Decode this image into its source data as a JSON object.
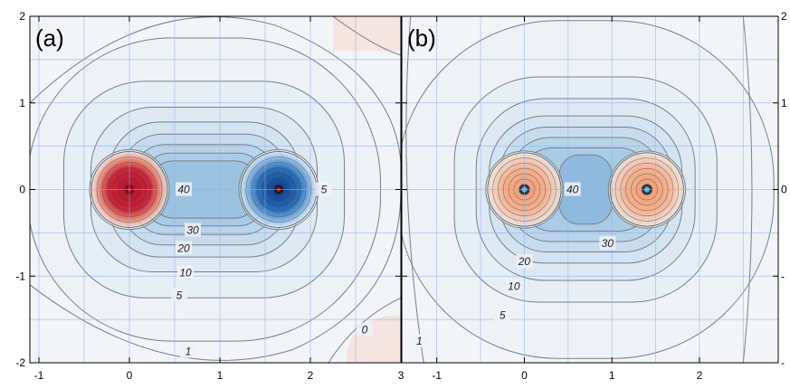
{
  "chart_data": [
    {
      "type": "contour",
      "panel_label": "(a)",
      "xlim": [
        -1.1,
        3.0
      ],
      "ylim": [
        -2,
        2
      ],
      "x_ticks": [
        -1,
        0,
        1,
        2,
        3
      ],
      "y_ticks": [
        -2,
        -1,
        0,
        1,
        2
      ],
      "grid": true,
      "sources": [
        {
          "x": 0.0,
          "y": 0.0,
          "strength": 1.0,
          "color": "#c0182d"
        },
        {
          "x": 1.65,
          "y": 0.0,
          "strength": -1.0,
          "color": "#1a56a8"
        }
      ],
      "contour_labels": [
        {
          "text": "40",
          "x": 0.6,
          "y": 0.0
        },
        {
          "text": "30",
          "x": 0.7,
          "y": -0.47
        },
        {
          "text": "20",
          "x": 0.6,
          "y": -0.68
        },
        {
          "text": "10",
          "x": 0.62,
          "y": -0.96
        },
        {
          "text": "5",
          "x": 0.55,
          "y": -1.22
        },
        {
          "text": "5",
          "x": 2.15,
          "y": 0.0
        },
        {
          "text": "1",
          "x": 0.65,
          "y": -1.87
        },
        {
          "text": "0",
          "x": 2.6,
          "y": -1.62
        }
      ]
    },
    {
      "type": "contour",
      "panel_label": "(b)",
      "xlim": [
        -1.4,
        2.9
      ],
      "ylim": [
        -2,
        2
      ],
      "x_ticks": [
        -1,
        0,
        1,
        2
      ],
      "y_ticks": [
        -2,
        -1,
        0,
        1,
        2
      ],
      "grid": true,
      "sources": [
        {
          "x": 0.0,
          "y": 0.0,
          "strength": 1.0,
          "color": "#e07a55"
        },
        {
          "x": 1.4,
          "y": 0.0,
          "strength": 1.0,
          "color": "#e07a55"
        }
      ],
      "contour_labels": [
        {
          "text": "40",
          "x": 0.55,
          "y": 0.0
        },
        {
          "text": "30",
          "x": 0.95,
          "y": -0.62
        },
        {
          "text": "20",
          "x": 0.0,
          "y": -0.83
        },
        {
          "text": "10",
          "x": -0.12,
          "y": -1.12
        },
        {
          "text": "5",
          "x": -0.25,
          "y": -1.45
        },
        {
          "text": "1",
          "x": -1.2,
          "y": -1.75
        }
      ]
    }
  ],
  "right_axis_labels": [
    "2",
    "1",
    "0",
    "-",
    "-"
  ]
}
